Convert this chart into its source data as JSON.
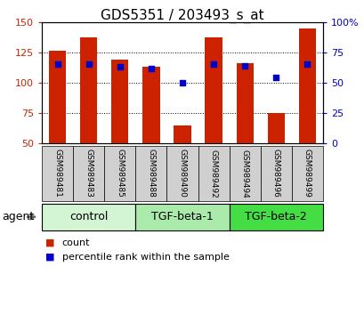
{
  "title": "GDS5351 / 203493_s_at",
  "samples": [
    "GSM989481",
    "GSM989483",
    "GSM989485",
    "GSM989488",
    "GSM989490",
    "GSM989492",
    "GSM989494",
    "GSM989496",
    "GSM989499"
  ],
  "counts": [
    126,
    137,
    119,
    113,
    65,
    137,
    116,
    75,
    145
  ],
  "percentiles": [
    65,
    65,
    63,
    62,
    50,
    65,
    64,
    54,
    65
  ],
  "groups": [
    {
      "label": "control",
      "start": 0,
      "end": 3,
      "color": "#d4f5d4"
    },
    {
      "label": "TGF-beta-1",
      "start": 3,
      "end": 6,
      "color": "#aaeaaa"
    },
    {
      "label": "TGF-beta-2",
      "start": 6,
      "end": 9,
      "color": "#44dd44"
    }
  ],
  "bar_color": "#cc2200",
  "dot_color": "#0000cc",
  "ymin": 50,
  "ymax": 150,
  "yticks_left": [
    50,
    75,
    100,
    125,
    150
  ],
  "yticks_right": [
    0,
    25,
    50,
    75,
    100
  ],
  "bar_width": 0.55,
  "agent_label": "agent",
  "legend_count": "count",
  "legend_percentile": "percentile rank within the sample",
  "title_fontsize": 11,
  "tick_fontsize": 8,
  "sample_fontsize": 6.5,
  "group_label_fontsize": 9,
  "legend_fontsize": 8
}
